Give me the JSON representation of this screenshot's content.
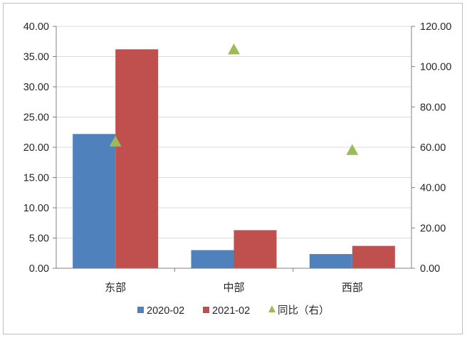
{
  "colors": {
    "series1": "#4f81bd",
    "series2": "#c0504d",
    "series3": "#9bbb59",
    "axis": "#808080",
    "grid": "#d9d9d9"
  },
  "chart_data": {
    "type": "bar",
    "categories": [
      "东部",
      "中部",
      "西部"
    ],
    "series": [
      {
        "name": "2020-02",
        "type": "bar",
        "axis": "left",
        "values": [
          22.2,
          3.0,
          2.35
        ]
      },
      {
        "name": "2021-02",
        "type": "bar",
        "axis": "left",
        "values": [
          36.2,
          6.3,
          3.7
        ]
      },
      {
        "name": "同比（右）",
        "type": "scatter",
        "marker": "triangle",
        "axis": "right",
        "values": [
          62.8,
          108.5,
          58.6
        ]
      }
    ],
    "y_left": {
      "ylim": [
        0,
        40
      ],
      "ticks": [
        "0.00",
        "5.00",
        "10.00",
        "15.00",
        "20.00",
        "25.00",
        "30.00",
        "35.00",
        "40.00"
      ]
    },
    "y_right": {
      "ylim": [
        0,
        120
      ],
      "ticks": [
        "0.00",
        "20.00",
        "40.00",
        "60.00",
        "80.00",
        "100.00",
        "120.00"
      ]
    },
    "grid": true,
    "legend": "bottom"
  }
}
